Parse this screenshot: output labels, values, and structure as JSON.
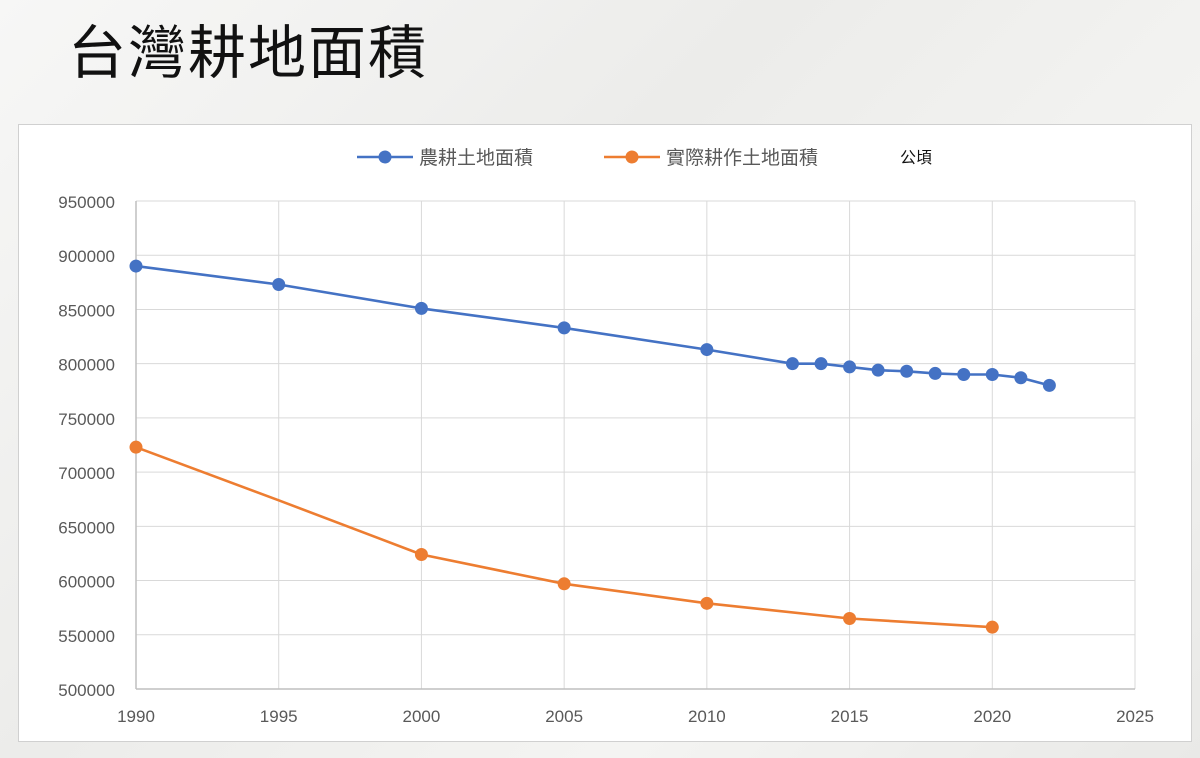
{
  "slide": {
    "title": "台灣耕地面積"
  },
  "chart_data": {
    "type": "line",
    "title": "",
    "unit_label": "公頃",
    "xlabel": "",
    "ylabel": "",
    "xlim": [
      1990,
      2025
    ],
    "ylim": [
      500000,
      950000
    ],
    "x_ticks": [
      "1990",
      "1995",
      "2000",
      "2005",
      "2010",
      "2015",
      "2020",
      "2025"
    ],
    "y_ticks": [
      "950000",
      "900000",
      "850000",
      "800000",
      "750000",
      "700000",
      "650000",
      "600000",
      "550000",
      "500000"
    ],
    "grid": true,
    "legend": "top-center",
    "series": [
      {
        "name": "農耕土地面積",
        "color": "#4472C4",
        "points": [
          {
            "x": 1990,
            "y": 890000,
            "marker": true
          },
          {
            "x": 1995,
            "y": 873000,
            "marker": true
          },
          {
            "x": 2000,
            "y": 851000,
            "marker": true
          },
          {
            "x": 2005,
            "y": 833000,
            "marker": true
          },
          {
            "x": 2010,
            "y": 813000,
            "marker": true
          },
          {
            "x": 2013,
            "y": 800000,
            "marker": true
          },
          {
            "x": 2014,
            "y": 800000,
            "marker": true
          },
          {
            "x": 2015,
            "y": 797000,
            "marker": true
          },
          {
            "x": 2016,
            "y": 794000,
            "marker": true
          },
          {
            "x": 2017,
            "y": 793000,
            "marker": true
          },
          {
            "x": 2018,
            "y": 791000,
            "marker": true
          },
          {
            "x": 2019,
            "y": 790000,
            "marker": true
          },
          {
            "x": 2020,
            "y": 790000,
            "marker": true
          },
          {
            "x": 2021,
            "y": 787000,
            "marker": true
          },
          {
            "x": 2022,
            "y": 780000,
            "marker": true
          }
        ]
      },
      {
        "name": "實際耕作土地面積",
        "color": "#ED7D31",
        "points": [
          {
            "x": 1990,
            "y": 723000,
            "marker": true
          },
          {
            "x": 1995,
            "y": 674000,
            "marker": false
          },
          {
            "x": 2000,
            "y": 624000,
            "marker": true
          },
          {
            "x": 2005,
            "y": 597000,
            "marker": true
          },
          {
            "x": 2010,
            "y": 579000,
            "marker": true
          },
          {
            "x": 2015,
            "y": 565000,
            "marker": true
          },
          {
            "x": 2020,
            "y": 557000,
            "marker": true
          }
        ]
      }
    ]
  }
}
